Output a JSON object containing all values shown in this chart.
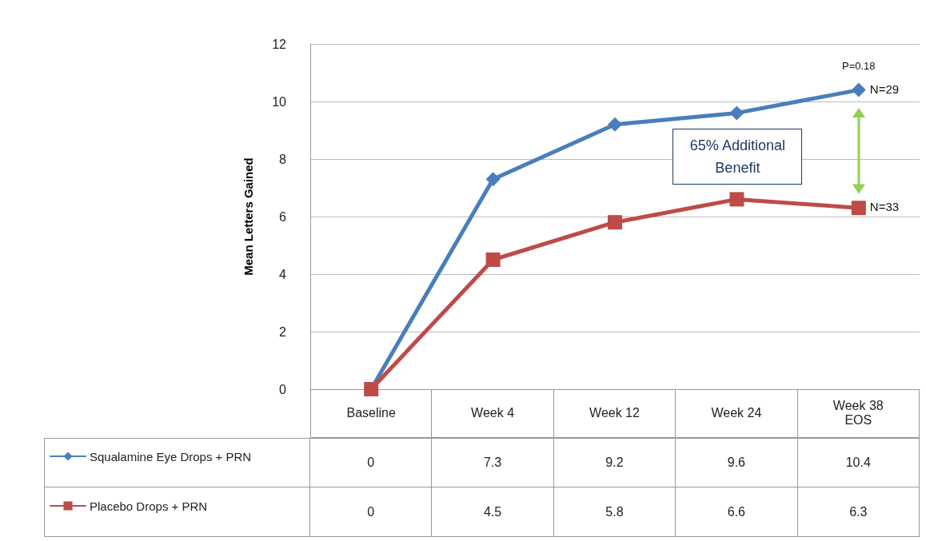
{
  "chart_data": {
    "type": "line",
    "ylabel": "Mean Letters Gained",
    "categories": [
      "Baseline",
      "Week 4",
      "Week 12",
      "Week 24",
      "Week 38 EOS"
    ],
    "series": [
      {
        "name": "Squalamine Eye Drops + PRN",
        "color": "#4a7ebb",
        "marker": "diamond",
        "values": [
          0,
          7.3,
          9.2,
          9.6,
          10.4
        ]
      },
      {
        "name": "Placebo Drops + PRN",
        "color": "#be4b48",
        "marker": "square",
        "values": [
          0,
          4.5,
          5.8,
          6.6,
          6.3
        ]
      }
    ],
    "ylim": [
      0,
      12
    ],
    "yticks": [
      0,
      2,
      4,
      6,
      8,
      10,
      12
    ],
    "grid": "y",
    "legend": "bottom left",
    "data_labels": true,
    "annotations": [
      {
        "text": "P=0.18",
        "x": "Week 38 EOS",
        "y": 10.4
      },
      {
        "text": "N=29",
        "x": "Week 38 EOS",
        "y": 10.4
      },
      {
        "text": "N=33",
        "x": "Week 38 EOS",
        "y": 6.3
      },
      "65% Additional Benefit"
    ]
  }
}
